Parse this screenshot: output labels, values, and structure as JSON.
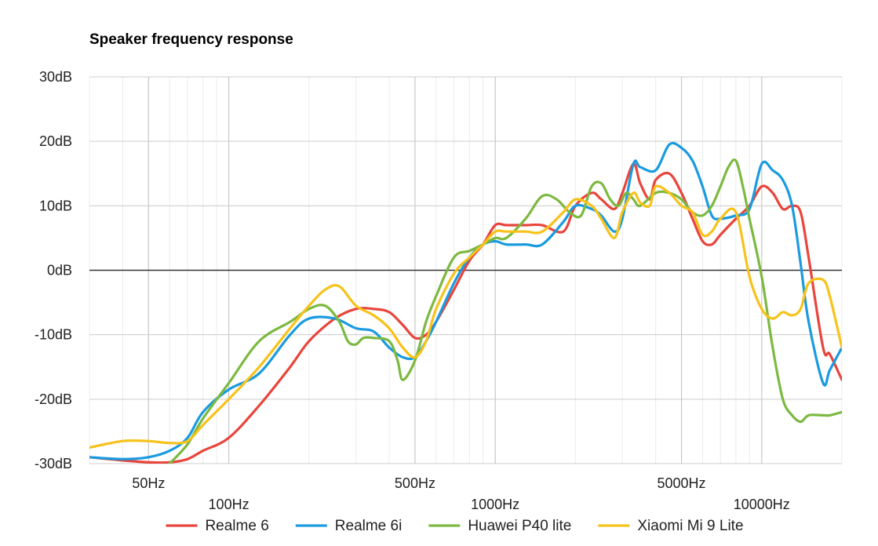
{
  "chart_data": {
    "type": "line",
    "title": "Speaker frequency response",
    "xlabel": "",
    "ylabel": "",
    "x_scale": "log",
    "xlim": [
      30,
      20000
    ],
    "ylim": [
      -30,
      30
    ],
    "grid": true,
    "legend_position": "bottom",
    "y_ticks": [
      {
        "value": 30,
        "label": "30dB"
      },
      {
        "value": 20,
        "label": "20dB"
      },
      {
        "value": 10,
        "label": "10dB"
      },
      {
        "value": 0,
        "label": "0dB"
      },
      {
        "value": -10,
        "label": "-10dB"
      },
      {
        "value": -20,
        "label": "-20dB"
      },
      {
        "value": -30,
        "label": "-30dB"
      }
    ],
    "x_ticks": [
      {
        "value": 50,
        "label": "50Hz",
        "row": 1
      },
      {
        "value": 100,
        "label": "100Hz",
        "row": 2
      },
      {
        "value": 500,
        "label": "500Hz",
        "row": 1
      },
      {
        "value": 1000,
        "label": "1000Hz",
        "row": 2
      },
      {
        "value": 5000,
        "label": "5000Hz",
        "row": 1
      },
      {
        "value": 10000,
        "label": "10000Hz",
        "row": 2
      }
    ],
    "series": [
      {
        "name": "Realme 6",
        "color": "#e8453c",
        "x": [
          30,
          40,
          50,
          60,
          70,
          80,
          100,
          130,
          170,
          200,
          250,
          300,
          350,
          400,
          450,
          500,
          550,
          600,
          700,
          800,
          900,
          1000,
          1100,
          1300,
          1500,
          1800,
          2000,
          2300,
          2500,
          2800,
          3000,
          3300,
          3500,
          3800,
          4000,
          4500,
          5000,
          5500,
          6000,
          6500,
          7000,
          8000,
          9000,
          10000,
          11000,
          12000,
          13000,
          14000,
          15000,
          17000,
          18000,
          20000
        ],
        "y": [
          -29,
          -29.5,
          -29.8,
          -29.8,
          -29.3,
          -28,
          -26,
          -21,
          -15,
          -11,
          -7.5,
          -6,
          -6,
          -6.5,
          -8.5,
          -10.5,
          -10,
          -8,
          -3,
          1.5,
          4,
          7,
          7,
          7,
          7,
          6,
          10,
          12,
          11,
          9.5,
          12,
          16.5,
          13.5,
          11,
          14,
          15,
          12,
          8,
          4.5,
          4,
          5.5,
          8,
          10,
          13,
          12,
          9.5,
          10,
          9,
          2,
          -12,
          -13,
          -17
        ]
      },
      {
        "name": "Realme 6i",
        "color": "#1a9be0",
        "x": [
          30,
          40,
          50,
          60,
          70,
          80,
          100,
          130,
          170,
          200,
          250,
          300,
          350,
          400,
          450,
          500,
          550,
          600,
          700,
          800,
          900,
          1000,
          1100,
          1300,
          1500,
          1800,
          2000,
          2300,
          2500,
          2800,
          3000,
          3300,
          3500,
          4000,
          4500,
          5000,
          5500,
          6000,
          6500,
          7000,
          8000,
          9000,
          10000,
          11000,
          12000,
          13000,
          14000,
          15000,
          17000,
          18000,
          20000
        ],
        "y": [
          -29,
          -29.3,
          -29,
          -28,
          -26,
          -22,
          -18.5,
          -16,
          -10,
          -7.5,
          -7.5,
          -9,
          -9.5,
          -12,
          -13.5,
          -13.5,
          -11,
          -8,
          -2,
          2,
          4,
          4.5,
          4,
          4,
          4,
          7.5,
          10,
          9.5,
          8.5,
          6,
          8,
          16.5,
          16,
          15.5,
          19.5,
          19,
          17,
          13,
          8.5,
          8,
          8.5,
          9.5,
          16.5,
          15.5,
          14,
          10,
          1,
          -8,
          -17.5,
          -15.5,
          -12
        ]
      },
      {
        "name": "Huawei P40 lite",
        "color": "#7cb940",
        "x": [
          60,
          70,
          80,
          100,
          130,
          170,
          200,
          230,
          260,
          280,
          300,
          320,
          350,
          400,
          430,
          450,
          500,
          550,
          600,
          700,
          800,
          900,
          1000,
          1100,
          1300,
          1500,
          1700,
          1900,
          2100,
          2300,
          2500,
          2700,
          2900,
          3100,
          3300,
          3500,
          4000,
          4500,
          5000,
          5500,
          6000,
          6500,
          7000,
          7500,
          8000,
          8500,
          9000,
          10000,
          11000,
          12000,
          13000,
          14000,
          15000,
          17000,
          18000,
          20000
        ],
        "y": [
          -30,
          -27,
          -23,
          -17.5,
          -11,
          -8,
          -6,
          -5.5,
          -8,
          -11,
          -11.5,
          -10.5,
          -10.5,
          -11,
          -14,
          -17,
          -14,
          -8,
          -4,
          2,
          3,
          4,
          5,
          5,
          8,
          11.5,
          11,
          9,
          8.5,
          13,
          13.5,
          11,
          10,
          12,
          11,
          10,
          12,
          12,
          11,
          9,
          8.5,
          10,
          13,
          16,
          17,
          13,
          8,
          -1,
          -12,
          -20,
          -22.5,
          -23.5,
          -22.5,
          -22.5,
          -22.5,
          -22
        ]
      },
      {
        "name": "Xiaomi Mi 9 Lite",
        "color": "#f7c21a",
        "x": [
          30,
          40,
          50,
          60,
          70,
          80,
          100,
          130,
          170,
          200,
          230,
          260,
          300,
          350,
          400,
          450,
          500,
          550,
          600,
          700,
          800,
          900,
          1000,
          1100,
          1300,
          1500,
          1800,
          2000,
          2300,
          2500,
          2800,
          3000,
          3300,
          3500,
          3800,
          4000,
          4500,
          5000,
          5500,
          6000,
          6500,
          7000,
          8000,
          9000,
          10000,
          11000,
          12000,
          13000,
          14000,
          15000,
          17000,
          18000,
          20000
        ],
        "y": [
          -27.5,
          -26.5,
          -26.5,
          -26.8,
          -26.5,
          -24,
          -20,
          -15,
          -9,
          -5.5,
          -3,
          -2.5,
          -5.5,
          -7,
          -9,
          -12,
          -13.5,
          -11,
          -6,
          -0.5,
          2,
          4,
          6,
          6,
          6,
          6,
          9,
          11,
          10,
          8,
          5,
          9,
          12,
          10.5,
          10,
          13,
          12,
          10,
          9,
          5.5,
          6,
          8,
          9,
          -1,
          -6,
          -7.5,
          -6.5,
          -7,
          -6,
          -2,
          -1.5,
          -4,
          -12
        ]
      }
    ]
  }
}
